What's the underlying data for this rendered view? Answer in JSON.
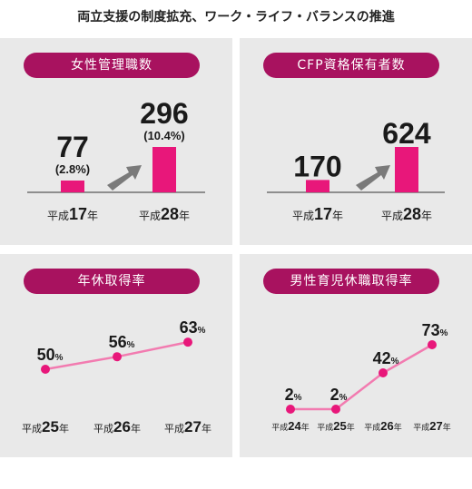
{
  "page_title": "両立支援の制度拡充、ワーク・ライフ・バランスの推進",
  "colors": {
    "accent": "#e8177a",
    "pill": "#a8125f",
    "line": "#f27bb0",
    "panel": "#e9e9e9",
    "arrow": "#7a7a7a"
  },
  "chart_data": [
    {
      "type": "bar",
      "title": "女性管理職数",
      "categories": [
        {
          "prefix": "平成",
          "num": "17",
          "suffix": "年"
        },
        {
          "prefix": "平成",
          "num": "28",
          "suffix": "年"
        }
      ],
      "values": [
        77,
        296
      ],
      "value_labels": [
        "77",
        "296"
      ],
      "sub_labels": [
        "(2.8%)",
        "(10.4%)"
      ],
      "growth_arrow": true
    },
    {
      "type": "bar",
      "title": "CFP資格保有者数",
      "categories": [
        {
          "prefix": "平成",
          "num": "17",
          "suffix": "年"
        },
        {
          "prefix": "平成",
          "num": "28",
          "suffix": "年"
        }
      ],
      "values": [
        170,
        624
      ],
      "value_labels": [
        "170",
        "624"
      ],
      "growth_arrow": true
    },
    {
      "type": "line",
      "title": "年休取得率",
      "categories": [
        {
          "prefix": "平成",
          "num": "25",
          "suffix": "年"
        },
        {
          "prefix": "平成",
          "num": "26",
          "suffix": "年"
        },
        {
          "prefix": "平成",
          "num": "27",
          "suffix": "年"
        }
      ],
      "values": [
        50,
        56,
        63
      ],
      "unit": "%",
      "ylim": [
        0,
        100
      ]
    },
    {
      "type": "line",
      "title": "男性育児休職取得率",
      "categories": [
        {
          "prefix": "平成",
          "num": "24",
          "suffix": "年"
        },
        {
          "prefix": "平成",
          "num": "25",
          "suffix": "年"
        },
        {
          "prefix": "平成",
          "num": "26",
          "suffix": "年"
        },
        {
          "prefix": "平成",
          "num": "27",
          "suffix": "年"
        }
      ],
      "values": [
        2,
        2,
        42,
        73
      ],
      "unit": "%",
      "ylim": [
        0,
        100
      ]
    }
  ]
}
